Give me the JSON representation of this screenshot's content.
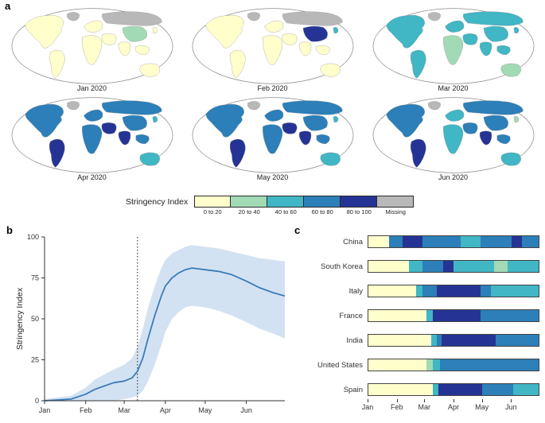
{
  "figure": {
    "panel_labels": {
      "a": "a",
      "b": "b",
      "c": "c"
    }
  },
  "category_colors": {
    "0_20": "#FFFFCC",
    "20_40": "#A1DAB4",
    "40_60": "#41B6C4",
    "60_80": "#2C7FB8",
    "80_100": "#253494",
    "missing": "#B8B8B8"
  },
  "style_colors": {
    "line": "#3B7CB8",
    "band": "#D3E2F2",
    "axis": "#333333",
    "map_outline": "#8A8A8A"
  },
  "legend": {
    "title": "Stringency Index",
    "entries": [
      {
        "label": "0 to 20",
        "category": "0_20"
      },
      {
        "label": "20 to 40",
        "category": "20_40"
      },
      {
        "label": "40 to 60",
        "category": "40_60"
      },
      {
        "label": "60 to 80",
        "category": "60_80"
      },
      {
        "label": "80 to 100",
        "category": "80_100"
      },
      {
        "label": "Missing",
        "category": "missing"
      }
    ]
  },
  "chart_data": [
    {
      "type": "heatmap",
      "subtype": "choropleth-small-multiples",
      "title": "Monthly world maps of Stringency Index, Jan-Jun 2020",
      "legend_bins": [
        "0 to 20",
        "20 to 40",
        "40 to 60",
        "60 to 80",
        "80 to 100",
        "Missing"
      ],
      "months": [
        {
          "label": "Jan 2020",
          "regions": {
            "greenland": "missing",
            "north_america": "0_20",
            "south_america": "0_20",
            "europe": "0_20",
            "africa": "0_20",
            "russia": "missing",
            "middle_east": "0_20",
            "india": "0_20",
            "china": "20_40",
            "southeast_asia": "0_20",
            "japan": "0_20",
            "australia": "0_20"
          }
        },
        {
          "label": "Feb 2020",
          "regions": {
            "greenland": "missing",
            "north_america": "0_20",
            "south_america": "0_20",
            "europe": "0_20",
            "africa": "0_20",
            "russia": "missing",
            "middle_east": "0_20",
            "india": "0_20",
            "china": "80_100",
            "southeast_asia": "0_20",
            "japan": "40_60",
            "australia": "0_20"
          }
        },
        {
          "label": "Mar 2020",
          "regions": {
            "greenland": "missing",
            "north_america": "40_60",
            "south_america": "40_60",
            "europe": "40_60",
            "africa": "20_40",
            "russia": "40_60",
            "middle_east": "40_60",
            "india": "40_60",
            "china": "40_60",
            "southeast_asia": "40_60",
            "japan": "40_60",
            "australia": "20_40"
          }
        },
        {
          "label": "Apr 2020",
          "regions": {
            "greenland": "missing",
            "north_america": "60_80",
            "south_america": "80_100",
            "europe": "60_80",
            "africa": "60_80",
            "russia": "60_80",
            "middle_east": "80_100",
            "india": "80_100",
            "china": "60_80",
            "southeast_asia": "60_80",
            "japan": "40_60",
            "australia": "40_60"
          }
        },
        {
          "label": "May 2020",
          "regions": {
            "greenland": "missing",
            "north_america": "60_80",
            "south_america": "80_100",
            "europe": "60_80",
            "africa": "60_80",
            "russia": "60_80",
            "middle_east": "80_100",
            "india": "80_100",
            "china": "60_80",
            "southeast_asia": "60_80",
            "japan": "40_60",
            "australia": "40_60"
          }
        },
        {
          "label": "Jun 2020",
          "regions": {
            "greenland": "missing",
            "north_america": "60_80",
            "south_america": "80_100",
            "europe": "40_60",
            "africa": "40_60",
            "russia": "60_80",
            "middle_east": "60_80",
            "india": "80_100",
            "china": "60_80",
            "southeast_asia": "60_80",
            "japan": "20_40",
            "australia": "40_60"
          }
        }
      ]
    },
    {
      "type": "line",
      "panel": "b",
      "ylabel": "Stringency Index",
      "ylim": [
        0,
        100
      ],
      "yticks": [
        0,
        25,
        50,
        75,
        100
      ],
      "xtick_days": [
        0,
        31,
        60,
        91,
        121,
        152
      ],
      "xticklabels": [
        "Jan",
        "Feb",
        "Mar",
        "Apr",
        "May",
        "Jun"
      ],
      "vline_day": 70,
      "x_days": [
        0,
        10,
        20,
        31,
        38,
        45,
        52,
        60,
        66,
        70,
        74,
        78,
        83,
        88,
        91,
        96,
        101,
        106,
        111,
        121,
        131,
        141,
        152,
        162,
        172,
        181
      ],
      "mean": [
        0,
        0.5,
        1,
        4,
        7,
        9,
        11,
        12,
        14,
        18,
        26,
        38,
        52,
        64,
        70,
        75,
        78,
        80,
        81,
        80,
        79,
        77,
        73,
        69,
        66,
        64
      ],
      "upper": [
        1,
        2,
        3,
        8,
        13,
        16,
        19,
        22,
        26,
        33,
        44,
        57,
        70,
        81,
        86,
        90,
        92,
        94,
        95,
        94,
        93,
        91,
        89,
        87,
        86,
        85
      ],
      "lower": [
        0,
        0,
        0,
        0,
        0,
        0,
        0,
        1,
        2,
        3,
        6,
        12,
        22,
        34,
        42,
        50,
        54,
        57,
        58,
        57,
        55,
        52,
        48,
        44,
        41,
        38
      ]
    },
    {
      "type": "heatmap",
      "subtype": "country-timeline",
      "panel": "c",
      "xticklabels": [
        "Jan",
        "Feb",
        "Mar",
        "Apr",
        "May",
        "Jun"
      ],
      "xtick_percents": [
        0,
        17,
        33,
        50,
        66.5,
        83.5
      ],
      "countries": [
        {
          "name": "China",
          "segments": [
            [
              "0_20",
              12
            ],
            [
              "60_80",
              8
            ],
            [
              "80_100",
              12
            ],
            [
              "60_80",
              22
            ],
            [
              "40_60",
              12
            ],
            [
              "60_80",
              18
            ],
            [
              "80_100",
              6
            ],
            [
              "60_80",
              10
            ]
          ]
        },
        {
          "name": "South Korea",
          "segments": [
            [
              "0_20",
              24
            ],
            [
              "40_60",
              8
            ],
            [
              "60_80",
              12
            ],
            [
              "80_100",
              6
            ],
            [
              "40_60",
              24
            ],
            [
              "20_40",
              8
            ],
            [
              "40_60",
              18
            ]
          ]
        },
        {
          "name": "Italy",
          "segments": [
            [
              "0_20",
              28
            ],
            [
              "40_60",
              4
            ],
            [
              "60_80",
              8
            ],
            [
              "80_100",
              26
            ],
            [
              "60_80",
              6
            ],
            [
              "40_60",
              28
            ]
          ]
        },
        {
          "name": "France",
          "segments": [
            [
              "0_20",
              34
            ],
            [
              "40_60",
              4
            ],
            [
              "80_100",
              28
            ],
            [
              "60_80",
              34
            ]
          ]
        },
        {
          "name": "India",
          "segments": [
            [
              "0_20",
              37
            ],
            [
              "40_60",
              3
            ],
            [
              "60_80",
              3
            ],
            [
              "80_100",
              32
            ],
            [
              "60_80",
              25
            ]
          ]
        },
        {
          "name": "United States",
          "segments": [
            [
              "0_20",
              34
            ],
            [
              "20_40",
              4
            ],
            [
              "40_60",
              4
            ],
            [
              "60_80",
              58
            ]
          ]
        },
        {
          "name": "Spain",
          "segments": [
            [
              "0_20",
              38
            ],
            [
              "40_60",
              3
            ],
            [
              "80_100",
              26
            ],
            [
              "60_80",
              18
            ],
            [
              "40_60",
              15
            ]
          ]
        }
      ]
    }
  ]
}
